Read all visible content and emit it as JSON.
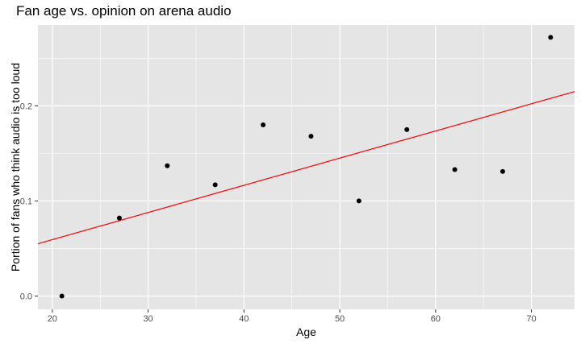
{
  "chart_data": {
    "type": "scatter",
    "title": "Fan age vs. opinion on arena audio",
    "xlabel": "Age",
    "ylabel": "Portion of fans who think audio is too loud",
    "xlim": [
      18.5,
      74.5
    ],
    "ylim": [
      -0.014,
      0.285
    ],
    "x_ticks": [
      20,
      30,
      40,
      50,
      60,
      70
    ],
    "y_ticks": [
      0.0,
      0.1,
      0.2
    ],
    "y_tick_labels": [
      "0.0",
      "0.1",
      "0.2"
    ],
    "x": [
      21,
      27,
      32,
      37,
      42,
      47,
      52,
      57,
      62,
      67,
      72
    ],
    "y": [
      0.0,
      0.082,
      0.137,
      0.117,
      0.18,
      0.168,
      0.1,
      0.175,
      0.133,
      0.131,
      0.272
    ],
    "trend_line": {
      "x": [
        18.5,
        74.5
      ],
      "y": [
        0.055,
        0.215
      ]
    },
    "grid": true,
    "colors": {
      "panel": "#e5e5e5",
      "grid": "#ffffff",
      "point": "#000000",
      "trend": "#ff0000"
    }
  }
}
